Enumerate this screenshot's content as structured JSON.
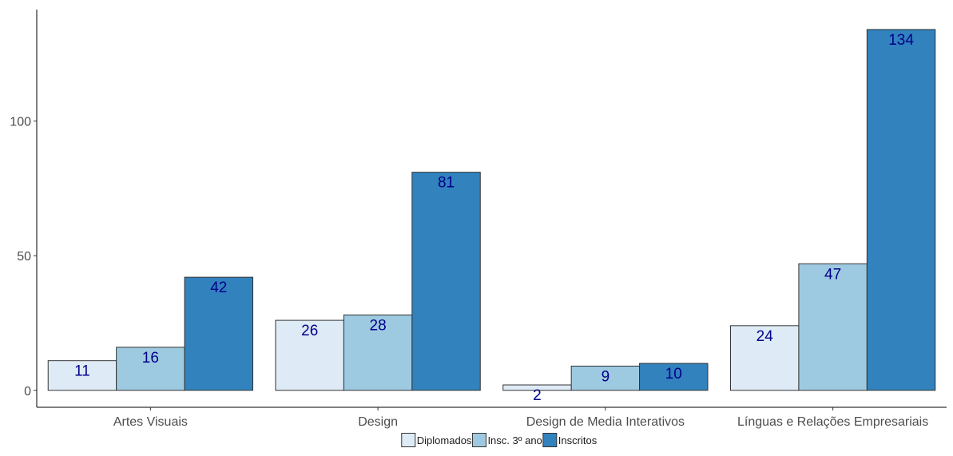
{
  "chart_data": {
    "type": "bar",
    "categories": [
      "Artes Visuais",
      "Design",
      "Design de Media Interativos",
      "Línguas e Relações Empresariais"
    ],
    "series": [
      {
        "name": "Diplomados",
        "color": "#deebf7",
        "values": [
          11,
          26,
          2,
          24
        ]
      },
      {
        "name": "Insc. 3º ano",
        "color": "#9ecae1",
        "values": [
          16,
          28,
          9,
          47
        ]
      },
      {
        "name": "Inscritos",
        "color": "#3182bd",
        "values": [
          42,
          81,
          10,
          134
        ]
      }
    ],
    "data_labels": [
      [
        "11",
        "26",
        "2",
        "24"
      ],
      [
        "16",
        "28",
        "9",
        "47"
      ],
      [
        "42",
        "81",
        "10",
        "134"
      ]
    ],
    "y_ticks": [
      0,
      50,
      100
    ],
    "y_tick_labels": [
      "0",
      "50",
      "100"
    ],
    "ylim": [
      -6.3,
      141.4
    ],
    "grid": false,
    "legend_position": "bottom",
    "title": "",
    "xlabel": "",
    "ylabel": "",
    "data_label_color": "#00008b"
  }
}
